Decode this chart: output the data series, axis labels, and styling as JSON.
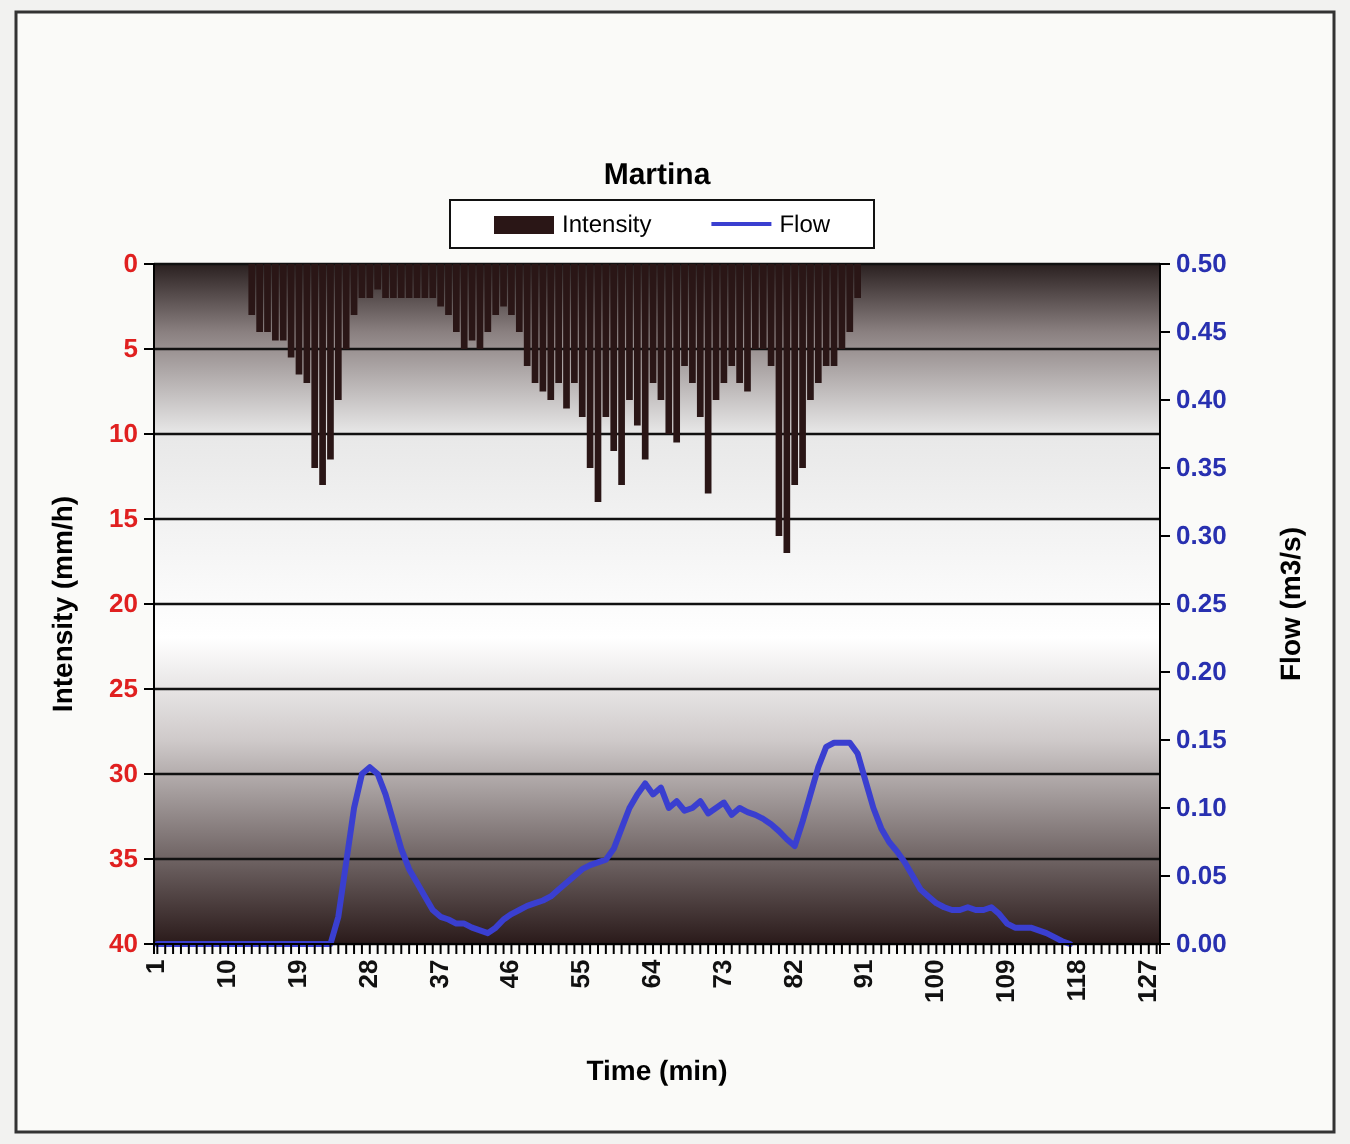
{
  "chart_data": {
    "type": "bar",
    "title": "Martina",
    "xlabel": "Time (min)",
    "ylabel": "Intensity (mm/h)",
    "y2label": "Flow (m3/s)",
    "categories": [
      "1",
      null,
      null,
      null,
      null,
      null,
      null,
      null,
      null,
      "10",
      null,
      null,
      null,
      null,
      null,
      null,
      null,
      null,
      "19",
      null,
      null,
      null,
      null,
      null,
      null,
      null,
      null,
      "28",
      null,
      null,
      null,
      null,
      null,
      null,
      null,
      null,
      "37",
      null,
      null,
      null,
      null,
      null,
      null,
      null,
      null,
      "46",
      null,
      null,
      null,
      null,
      null,
      null,
      null,
      null,
      "55",
      null,
      null,
      null,
      null,
      null,
      null,
      null,
      null,
      "64",
      null,
      null,
      null,
      null,
      null,
      null,
      null,
      null,
      "73",
      null,
      null,
      null,
      null,
      null,
      null,
      null,
      null,
      "82",
      null,
      null,
      null,
      null,
      null,
      null,
      null,
      null,
      "91",
      null,
      null,
      null,
      null,
      null,
      null,
      null,
      null,
      "100",
      null,
      null,
      null,
      null,
      null,
      null,
      null,
      null,
      "109",
      null,
      null,
      null,
      null,
      null,
      null,
      null,
      null,
      "118",
      null,
      null,
      null,
      null,
      null,
      null,
      null,
      null,
      "127",
      null
    ],
    "series": [
      {
        "name": "Intensity",
        "color": "#2a1616",
        "values": [
          0,
          0,
          0,
          0,
          0,
          0,
          0,
          0,
          0,
          0,
          0,
          0,
          3,
          4,
          4,
          4.5,
          4.5,
          5.5,
          6.5,
          7,
          12,
          13,
          11.5,
          8,
          5,
          3,
          2,
          2,
          1.5,
          2,
          2,
          2,
          2,
          2,
          2,
          2,
          2.5,
          3,
          4,
          5,
          4.5,
          5,
          4,
          3,
          2.5,
          3,
          4,
          6,
          7,
          7.5,
          8,
          7,
          8.5,
          7,
          9,
          12,
          14,
          9,
          11,
          13,
          8,
          9.5,
          11.5,
          7,
          8,
          10,
          10.5,
          6,
          7,
          9,
          13.5,
          8,
          7,
          6,
          7,
          7.5,
          5,
          5,
          6,
          16,
          17,
          13,
          12,
          8,
          7,
          6,
          6,
          5,
          4,
          2,
          0,
          0,
          0,
          0,
          0,
          0,
          0,
          0,
          0,
          0,
          0,
          0,
          0,
          0,
          0,
          0,
          0,
          0,
          0,
          0,
          0,
          0,
          0,
          0,
          0,
          0,
          0,
          0,
          0,
          0,
          0,
          0,
          0,
          0,
          0,
          0,
          0,
          0
        ]
      },
      {
        "name": "Flow",
        "type": "line",
        "axis": "y2",
        "color": "#3a3fd0",
        "values": [
          0,
          0,
          0,
          0,
          0,
          0,
          0,
          0,
          0,
          0,
          0,
          0,
          0,
          0,
          0,
          0,
          0,
          0,
          0,
          0,
          0,
          0,
          0,
          0.02,
          0.06,
          0.1,
          0.125,
          0.13,
          0.125,
          0.11,
          0.09,
          0.07,
          0.055,
          0.045,
          0.035,
          0.025,
          0.02,
          0.018,
          0.015,
          0.015,
          0.012,
          0.01,
          0.008,
          0.012,
          0.018,
          0.022,
          0.025,
          0.028,
          0.03,
          0.032,
          0.035,
          0.04,
          0.045,
          0.05,
          0.055,
          0.058,
          0.06,
          0.062,
          0.07,
          0.085,
          0.1,
          0.11,
          0.118,
          0.11,
          0.115,
          0.1,
          0.105,
          0.098,
          0.1,
          0.105,
          0.096,
          0.1,
          0.104,
          0.095,
          0.1,
          0.097,
          0.095,
          0.092,
          0.088,
          0.083,
          0.077,
          0.072,
          0.09,
          0.11,
          0.13,
          0.145,
          0.148,
          0.148,
          0.148,
          0.14,
          0.12,
          0.1,
          0.085,
          0.075,
          0.068,
          0.06,
          0.05,
          0.04,
          0.035,
          0.03,
          0.027,
          0.025,
          0.025,
          0.027,
          0.025,
          0.025,
          0.027,
          0.022,
          0.015,
          0.012,
          0.012,
          0.012,
          0.01,
          0.008,
          0.005,
          0.002,
          0,
          null,
          null,
          null,
          null,
          null,
          null,
          null,
          null,
          null,
          null,
          null
        ]
      }
    ],
    "ylim": [
      40,
      0
    ],
    "yticks": [
      0,
      5,
      10,
      15,
      20,
      25,
      30,
      35,
      40
    ],
    "y2lim": [
      0,
      0.5
    ],
    "y2ticks": [
      {
        "value": 0,
        "label": "0.00"
      },
      {
        "value": 0.05,
        "label": "0.05"
      },
      {
        "value": 0.1,
        "label": "0.10"
      },
      {
        "value": 0.15,
        "label": "0.15"
      },
      {
        "value": 0.2,
        "label": "0.20"
      },
      {
        "value": 0.25,
        "label": "0.25"
      },
      {
        "value": 0.3,
        "label": "0.30"
      },
      {
        "value": 0.35,
        "label": "0.35"
      },
      {
        "value": 0.4,
        "label": "0.40"
      },
      {
        "value": 0.45,
        "label": "0.45"
      },
      {
        "value": 0.5,
        "label": "0.50"
      }
    ],
    "grid": "y",
    "legend": "top"
  }
}
